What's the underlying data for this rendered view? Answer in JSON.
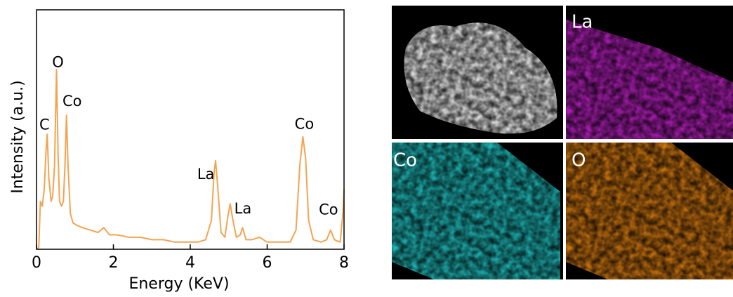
{
  "chart_data": {
    "type": "line",
    "xlabel": "Energy (KeV)",
    "ylabel": "Intensity (a.u.)",
    "xlim": [
      0,
      8
    ],
    "xticks": [
      0,
      2,
      4,
      6,
      8
    ],
    "ylim": [
      0,
      100
    ],
    "color": "#f4a451",
    "x": [
      0.03,
      0.06,
      0.1,
      0.15,
      0.2,
      0.25,
      0.28,
      0.32,
      0.38,
      0.42,
      0.47,
      0.52,
      0.56,
      0.6,
      0.65,
      0.7,
      0.74,
      0.78,
      0.82,
      0.88,
      0.95,
      1.05,
      1.2,
      1.4,
      1.6,
      1.75,
      1.9,
      2.1,
      2.4,
      2.7,
      3.0,
      3.3,
      3.6,
      3.9,
      4.2,
      4.4,
      4.55,
      4.62,
      4.66,
      4.72,
      4.8,
      4.9,
      4.98,
      5.04,
      5.1,
      5.2,
      5.3,
      5.36,
      5.45,
      5.6,
      5.8,
      6.0,
      6.2,
      6.4,
      6.6,
      6.75,
      6.85,
      6.93,
      7.0,
      7.08,
      7.2,
      7.4,
      7.55,
      7.65,
      7.75,
      7.9,
      7.97,
      8.0
    ],
    "values": [
      0,
      1,
      20,
      18,
      25,
      42,
      48,
      30,
      20,
      22,
      35,
      75,
      40,
      20,
      18,
      20,
      35,
      56,
      35,
      15,
      11,
      10,
      9,
      8,
      7,
      9,
      6,
      6,
      5,
      5,
      4,
      4,
      3,
      3,
      3,
      4,
      12,
      32,
      37,
      25,
      7,
      5,
      14,
      19,
      13,
      5,
      6,
      9,
      4,
      4,
      5,
      3,
      3,
      3,
      3,
      8,
      35,
      47,
      38,
      12,
      4,
      3,
      4,
      8,
      4,
      3,
      15,
      25
    ],
    "annotations": [
      {
        "text": "C",
        "x": 0.28,
        "y": 48
      },
      {
        "text": "O",
        "x": 0.52,
        "y": 75
      },
      {
        "text": "Co",
        "x": 0.78,
        "y": 56
      },
      {
        "text": "La",
        "x": 4.66,
        "y": 37
      },
      {
        "text": "La",
        "x": 5.04,
        "y": 19
      },
      {
        "text": "Co",
        "x": 6.93,
        "y": 47
      },
      {
        "text": "Co",
        "x": 7.65,
        "y": 8
      }
    ]
  },
  "maps": {
    "labels": [
      "La",
      "Co",
      "O"
    ]
  }
}
